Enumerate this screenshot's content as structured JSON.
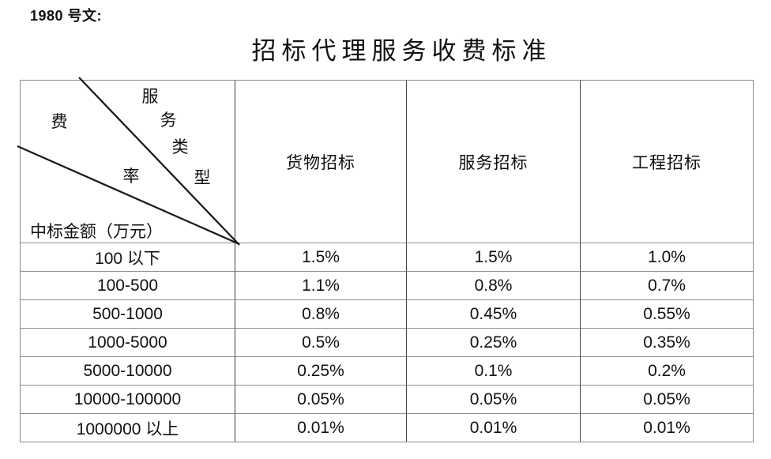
{
  "page": {
    "doc_ref": "1980 号文:",
    "title": "招标代理服务收费标准"
  },
  "table": {
    "corner": {
      "service_type_chars": [
        "服",
        "务",
        "类",
        "型"
      ],
      "rate_chars": [
        "费",
        "率"
      ],
      "amount_label": "中标金额（万元）"
    },
    "column_headers": [
      "货物招标",
      "服务招标",
      "工程招标"
    ],
    "rows": [
      {
        "range": "100 以下",
        "values": [
          "1.5%",
          "1.5%",
          "1.0%"
        ]
      },
      {
        "range": "100-500",
        "values": [
          "1.1%",
          "0.8%",
          "0.7%"
        ]
      },
      {
        "range": "500-1000",
        "values": [
          "0.8%",
          "0.45%",
          "0.55%"
        ]
      },
      {
        "range": "1000-5000",
        "values": [
          "0.5%",
          "0.25%",
          "0.35%"
        ]
      },
      {
        "range": "5000-10000",
        "values": [
          "0.25%",
          "0.1%",
          "0.2%"
        ]
      },
      {
        "range": "10000-100000",
        "values": [
          "0.05%",
          "0.05%",
          "0.05%"
        ]
      },
      {
        "range": "1000000 以上",
        "values": [
          "0.01%",
          "0.01%",
          "0.01%"
        ]
      }
    ]
  },
  "colors": {
    "background": "#ffffff",
    "text": "#111111",
    "border_outer": "#8a8a8a",
    "border_vertical": "#404040",
    "border_horizontal": "#8f8f8f",
    "diagonal_line": "#1a1a1a"
  }
}
